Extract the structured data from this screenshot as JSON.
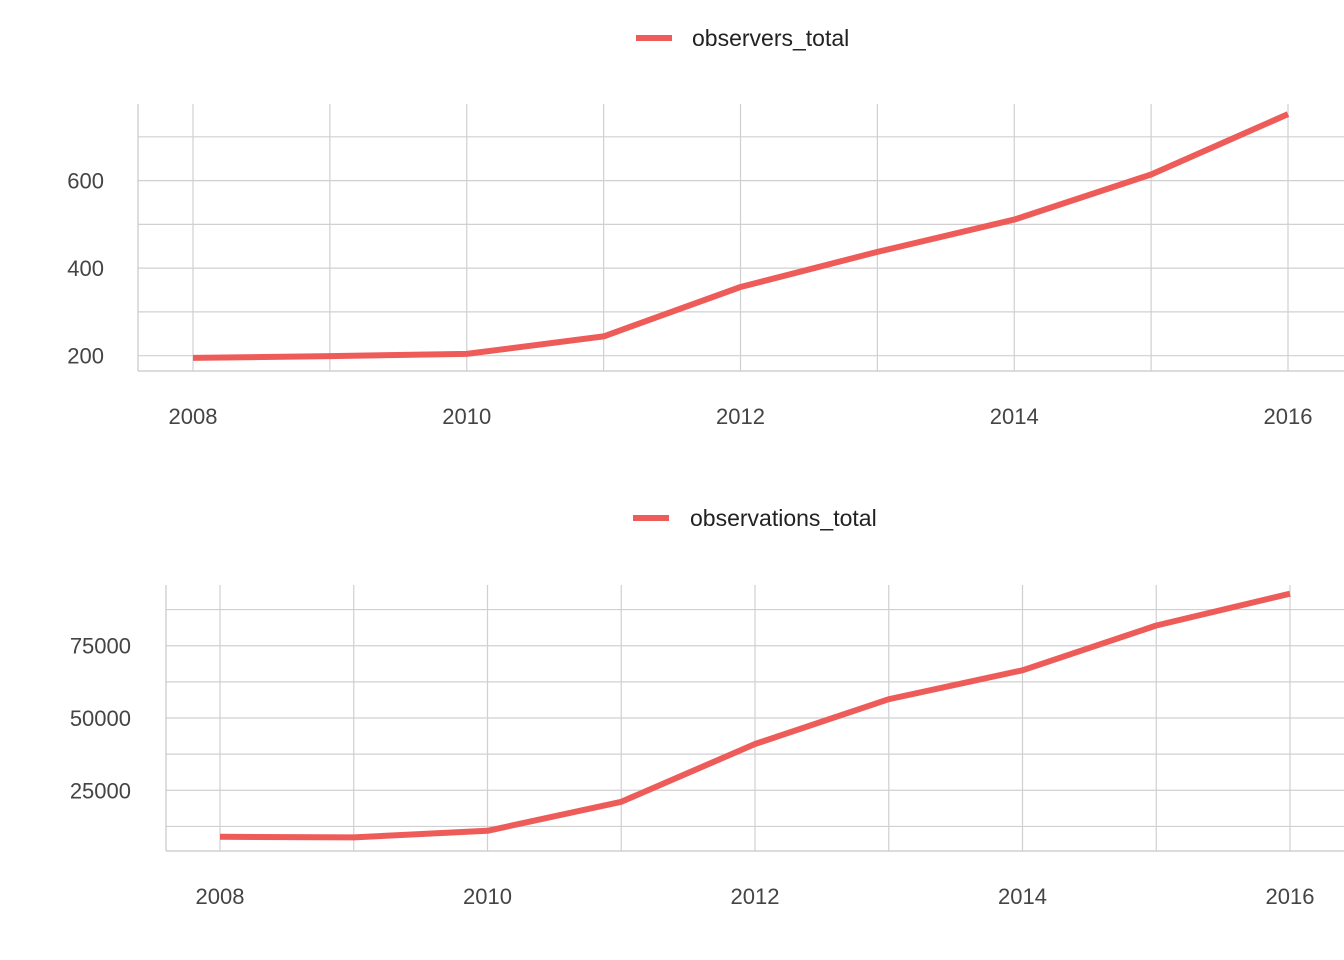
{
  "chart_data": [
    {
      "type": "line",
      "title": "",
      "xlabel": "",
      "ylabel": "",
      "x": [
        2008,
        2009,
        2010,
        2011,
        2012,
        2013,
        2014,
        2015,
        2016
      ],
      "series": [
        {
          "name": "observers_total",
          "values": [
            195,
            199,
            204,
            244,
            357,
            437,
            511,
            614,
            752
          ],
          "color": "#ee5c5a"
        }
      ],
      "xlim": [
        2008,
        2016
      ],
      "ylim": [
        165,
        775
      ],
      "xticks": [
        2008,
        2010,
        2012,
        2014,
        2016
      ],
      "xtick_labels": [
        "2008",
        "2010",
        "2012",
        "2014",
        "2016"
      ],
      "yticks": [
        200,
        400,
        600
      ],
      "ytick_labels": [
        "200",
        "400",
        "600"
      ],
      "grid": true,
      "legend_position": "top-center"
    },
    {
      "type": "line",
      "title": "",
      "xlabel": "",
      "ylabel": "",
      "x": [
        2008,
        2009,
        2010,
        2011,
        2012,
        2013,
        2014,
        2015,
        2016
      ],
      "series": [
        {
          "name": "observations_total",
          "values": [
            8900,
            8700,
            11000,
            21000,
            41000,
            56500,
            66500,
            82000,
            93000
          ],
          "color": "#ee5c5a"
        }
      ],
      "xlim": [
        2008,
        2016
      ],
      "ylim": [
        4000,
        96000
      ],
      "xticks": [
        2008,
        2010,
        2012,
        2014,
        2016
      ],
      "xtick_labels": [
        "2008",
        "2010",
        "2012",
        "2014",
        "2016"
      ],
      "yticks": [
        25000,
        50000,
        75000
      ],
      "ytick_labels": [
        "25000",
        "50000",
        "75000"
      ],
      "grid": true,
      "legend_position": "top-center"
    }
  ]
}
